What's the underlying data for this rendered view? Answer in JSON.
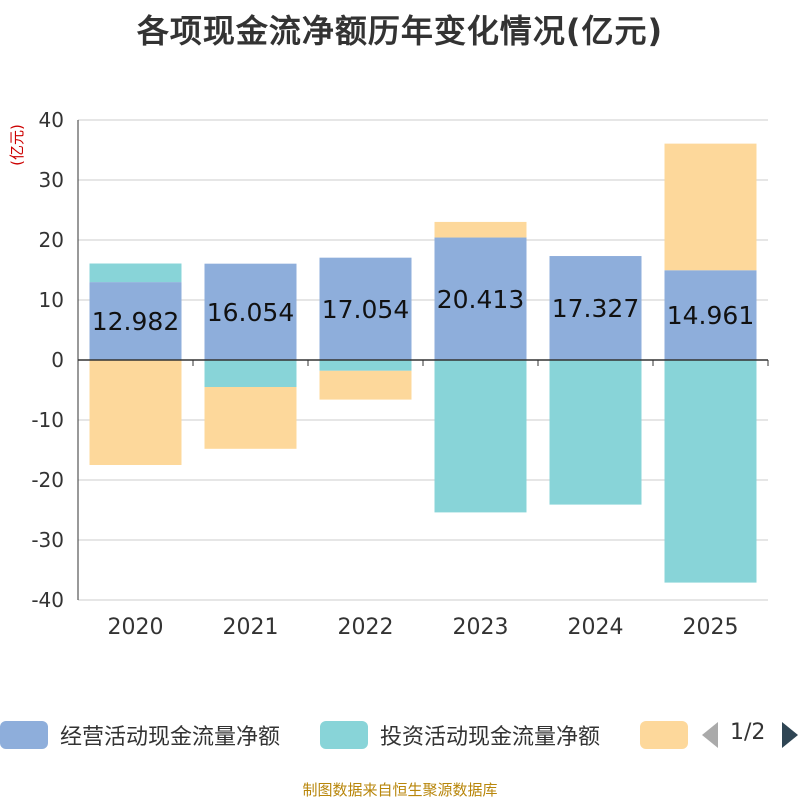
{
  "title": "各项现金流净额历年变化情况(亿元)",
  "source": "制图数据来自恒生聚源数据库",
  "legend": {
    "items": [
      {
        "label": "经营活动现金流量净额",
        "color": "#8eaedb"
      },
      {
        "label": "投资活动现金流量净额",
        "color": "#88d4d8"
      },
      {
        "label": "",
        "color": "#fdd89b"
      }
    ],
    "pager": "1/2"
  },
  "chart_data": {
    "type": "bar",
    "stacked": true,
    "categories": [
      "2020",
      "2021",
      "2022",
      "2023",
      "2024",
      "2025"
    ],
    "ylabel": "(亿元)",
    "ylim": [
      -40,
      40
    ],
    "yticks": [
      40,
      30,
      20,
      10,
      0,
      -10,
      -20,
      -30,
      -40
    ],
    "grid": true,
    "series": [
      {
        "name": "经营活动现金流量净额",
        "color": "#8eaedb",
        "values": [
          12.982,
          16.054,
          17.054,
          20.413,
          17.327,
          14.961
        ],
        "labels": [
          "12.982",
          "16.054",
          "17.054",
          "20.413",
          "17.327",
          "14.961"
        ]
      },
      {
        "name": "投资活动现金流量净额",
        "color": "#88d4d8",
        "values": [
          3.1,
          -4.5,
          -1.8,
          -25.4,
          -24.1,
          -37.1
        ]
      },
      {
        "name": "",
        "color": "#fdd89b",
        "values": [
          -17.5,
          -10.3,
          -4.8,
          2.6,
          0,
          21.1
        ]
      }
    ]
  }
}
